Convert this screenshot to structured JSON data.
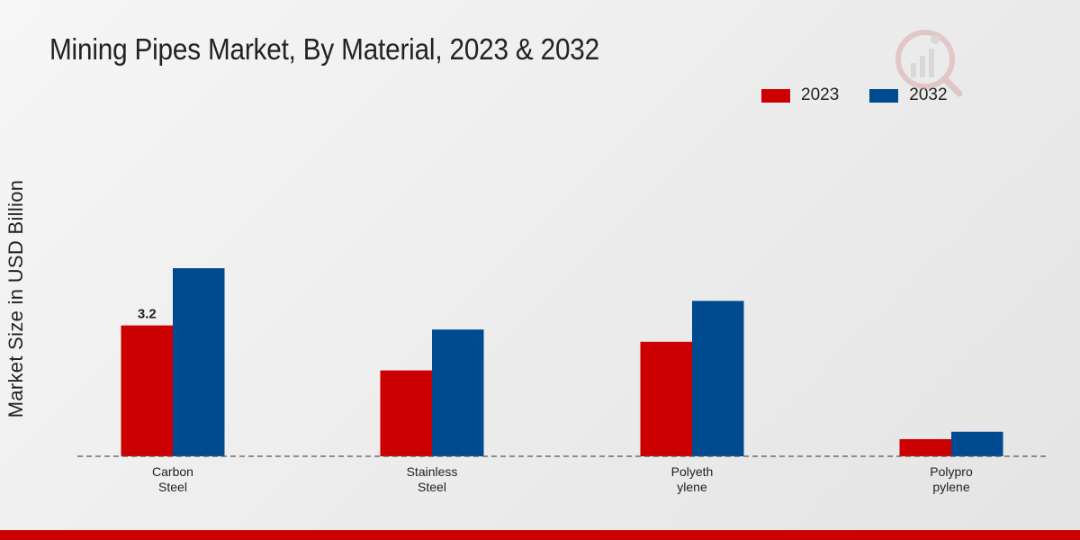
{
  "chart_data": {
    "type": "bar",
    "title": "Mining Pipes Market, By Material, 2023 & 2032",
    "xlabel": "",
    "ylabel": "Market Size in USD Billion",
    "categories": [
      [
        "Carbon",
        "Steel"
      ],
      [
        "Stainless",
        "Steel"
      ],
      [
        "Polyeth",
        "ylene"
      ],
      [
        "Polypro",
        "pylene"
      ]
    ],
    "series": [
      {
        "name": "2023",
        "color": "#cc0000",
        "values": [
          3.2,
          2.1,
          2.8,
          0.42
        ]
      },
      {
        "name": "2032",
        "color": "#004a8f",
        "values": [
          4.6,
          3.1,
          3.8,
          0.6
        ]
      }
    ],
    "data_labels": [
      {
        "series": 0,
        "index": 0,
        "text": "3.2"
      }
    ],
    "ylim": [
      0,
      5.5
    ],
    "grid": false,
    "legend_position": "top-right"
  }
}
